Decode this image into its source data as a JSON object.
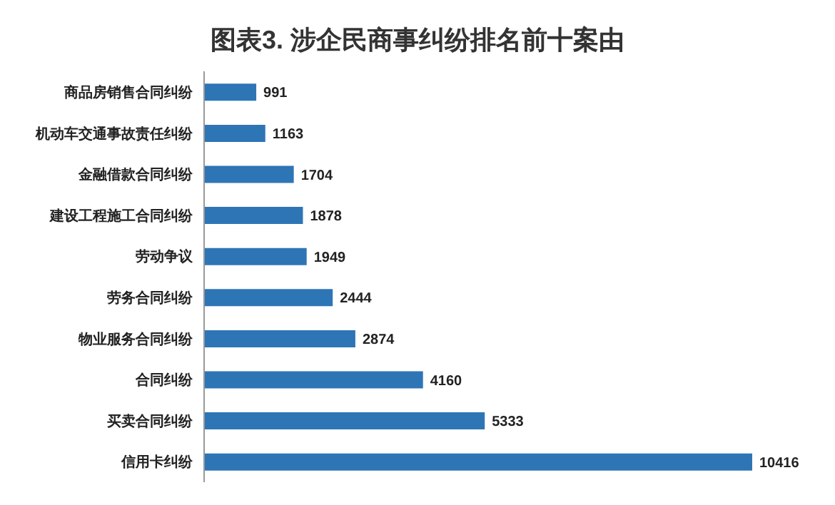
{
  "chart_data": {
    "type": "bar",
    "orientation": "horizontal",
    "title": "图表3.  涉企民商事纠纷排名前十案由",
    "categories": [
      "商品房销售合同纠纷",
      "机动车交通事故责任纠纷",
      "金融借款合同纠纷",
      "建设工程施工合同纠纷",
      "劳动争议",
      "劳务合同纠纷",
      "物业服务合同纠纷",
      "合同纠纷",
      "买卖合同纠纷",
      "信用卡纠纷"
    ],
    "values": [
      991,
      1163,
      1704,
      1878,
      1949,
      2444,
      2874,
      4160,
      5333,
      10416
    ],
    "color": "#2e75b6",
    "data_labels": true
  }
}
